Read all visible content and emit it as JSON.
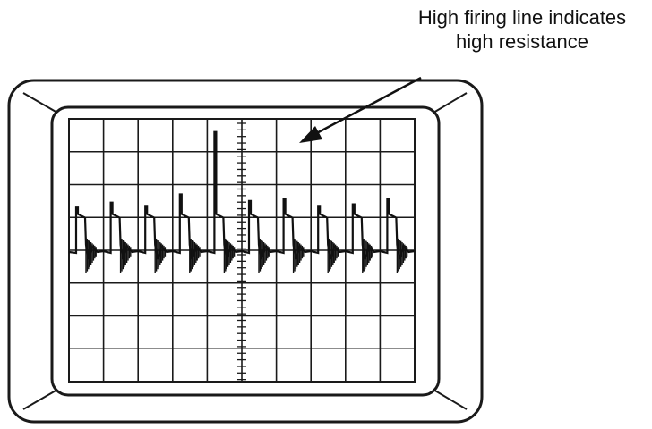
{
  "annotation": {
    "line1": "High firing line indicates",
    "line2": "high resistance"
  },
  "screen": {
    "grid_columns": 10,
    "grid_rows": 8,
    "trace_color": "#111111",
    "bezel_color": "#1a1a1a"
  },
  "trace": {
    "cylinders": 10,
    "firing_line_level": [
      1.3,
      1.45,
      1.35,
      1.7,
      3.6,
      1.5,
      1.55,
      1.35,
      1.4,
      1.55
    ],
    "high_firing_cylinder_index": 4
  }
}
